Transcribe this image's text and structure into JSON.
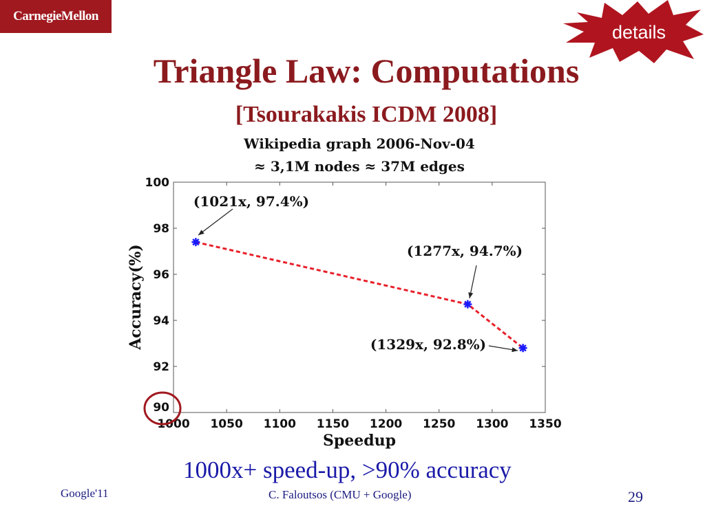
{
  "header": {
    "logo_text": "CarnegieMellon",
    "badge_text": "details",
    "title": "Triangle Law: Computations",
    "subtitle": "[Tsourakakis ICDM 2008]"
  },
  "chart_data": {
    "type": "line",
    "title": "Wikipedia graph 2006-Nov-04",
    "subtitle": "≈ 3,1M nodes ≈ 37M edges",
    "xlabel": "Speedup",
    "ylabel": "Accuracy(%)",
    "xlim": [
      1000,
      1350
    ],
    "ylim": [
      90,
      100
    ],
    "x_ticks": [
      1000,
      1050,
      1100,
      1150,
      1200,
      1250,
      1300,
      1350
    ],
    "y_ticks": [
      90,
      92,
      94,
      96,
      98,
      100
    ],
    "grid": false,
    "series": [
      {
        "color": "#e8202a",
        "marker_color": "#1a1aff",
        "x": [
          1021,
          1277,
          1329
        ],
        "y": [
          97.4,
          94.7,
          92.8
        ]
      }
    ],
    "annotations": [
      {
        "text": "(1021x, 97.4%)",
        "x": 1021,
        "y": 97.4
      },
      {
        "text": "(1277x, 94.7%)",
        "x": 1277,
        "y": 94.7
      },
      {
        "text": "(1329x, 92.8%)",
        "x": 1329,
        "y": 92.8
      }
    ],
    "highlight_tick": "90"
  },
  "caption": "1000x+ speed-up, >90% accuracy",
  "footer": {
    "left": "Google'11",
    "center": "C. Faloutsos (CMU + Google)",
    "page": "29"
  },
  "colors": {
    "title": "#8b1a1e",
    "logo_bg": "#a0191f",
    "caption": "#1a1aa8",
    "highlight_circle": "#a0191f"
  }
}
